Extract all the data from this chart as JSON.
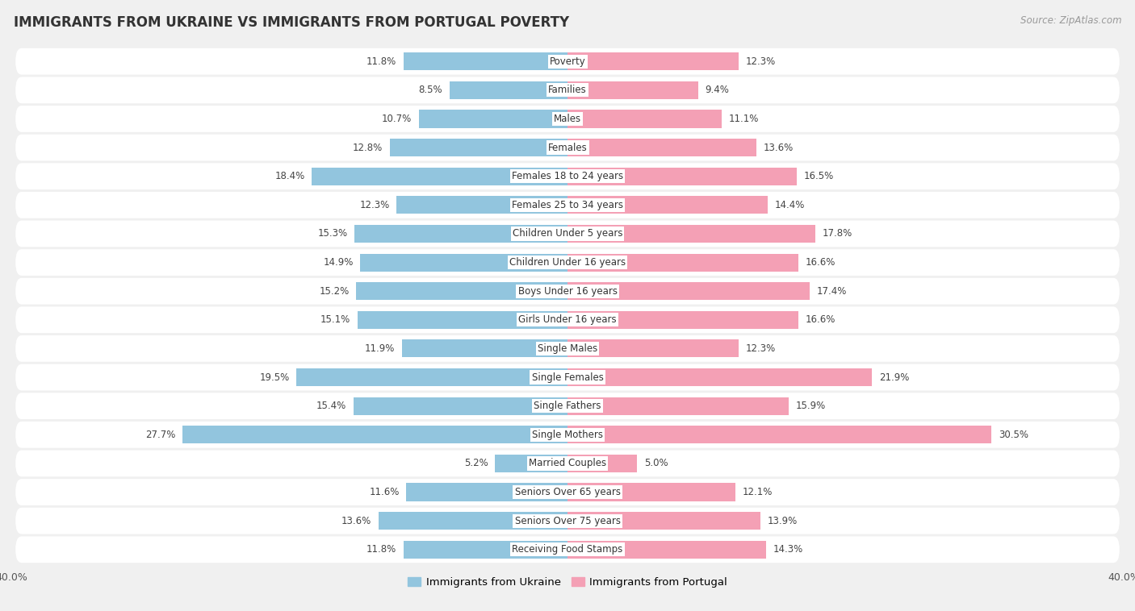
{
  "title": "IMMIGRANTS FROM UKRAINE VS IMMIGRANTS FROM PORTUGAL POVERTY",
  "source": "Source: ZipAtlas.com",
  "categories": [
    "Poverty",
    "Families",
    "Males",
    "Females",
    "Females 18 to 24 years",
    "Females 25 to 34 years",
    "Children Under 5 years",
    "Children Under 16 years",
    "Boys Under 16 years",
    "Girls Under 16 years",
    "Single Males",
    "Single Females",
    "Single Fathers",
    "Single Mothers",
    "Married Couples",
    "Seniors Over 65 years",
    "Seniors Over 75 years",
    "Receiving Food Stamps"
  ],
  "ukraine_values": [
    11.8,
    8.5,
    10.7,
    12.8,
    18.4,
    12.3,
    15.3,
    14.9,
    15.2,
    15.1,
    11.9,
    19.5,
    15.4,
    27.7,
    5.2,
    11.6,
    13.6,
    11.8
  ],
  "portugal_values": [
    12.3,
    9.4,
    11.1,
    13.6,
    16.5,
    14.4,
    17.8,
    16.6,
    17.4,
    16.6,
    12.3,
    21.9,
    15.9,
    30.5,
    5.0,
    12.1,
    13.9,
    14.3
  ],
  "ukraine_color": "#92C5DE",
  "portugal_color": "#F4A0B5",
  "background_color": "#f0f0f0",
  "row_color_odd": "#fafafa",
  "row_color_even": "#efefef",
  "axis_limit": 40.0,
  "bar_height": 0.62,
  "title_fontsize": 12,
  "source_fontsize": 8.5,
  "value_fontsize": 8.5,
  "category_fontsize": 8.5,
  "legend_fontsize": 9.5,
  "axis_fontsize": 9
}
